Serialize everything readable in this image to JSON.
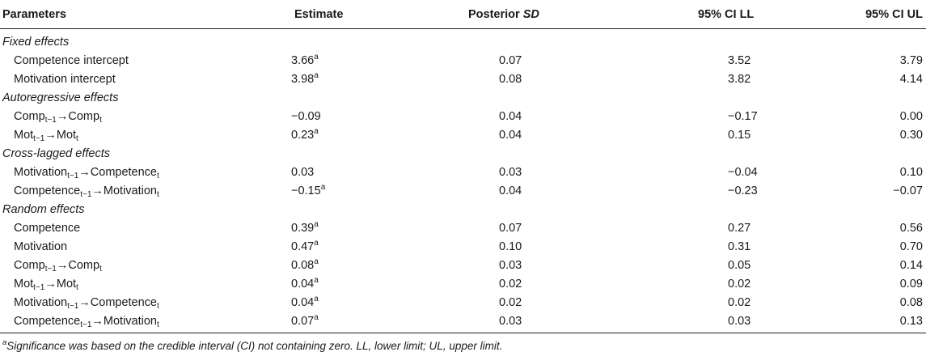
{
  "table": {
    "headers": {
      "parameters": "Parameters",
      "estimate": "Estimate",
      "posterior": "Posterior ",
      "posterior_sd": "SD",
      "ci_ll": "95% CI LL",
      "ci_ul": "95% CI UL"
    },
    "sections": [
      {
        "title": "Fixed effects",
        "rows": [
          {
            "label": "Competence intercept",
            "sub1": "",
            "mid": "",
            "sub2": "",
            "est": "3.66",
            "sig": "a",
            "sd": "0.07",
            "ll": "3.52",
            "ul": "3.79"
          },
          {
            "label": "Motivation intercept",
            "sub1": "",
            "mid": "",
            "sub2": "",
            "est": "3.98",
            "sig": "a",
            "sd": "0.08",
            "ll": "3.82",
            "ul": "4.14"
          }
        ]
      },
      {
        "title": "Autoregressive effects",
        "rows": [
          {
            "label": "Comp",
            "sub1": "t−1",
            "mid": "→Comp",
            "sub2": "t",
            "est": "−0.09",
            "sig": "",
            "sd": "0.04",
            "ll": "−0.17",
            "ul": "0.00"
          },
          {
            "label": "Mot",
            "sub1": "t−1",
            "mid": "→Mot",
            "sub2": "t",
            "est": "0.23",
            "sig": "a",
            "sd": "0.04",
            "ll": "0.15",
            "ul": "0.30"
          }
        ]
      },
      {
        "title": "Cross-lagged effects",
        "rows": [
          {
            "label": "Motivation",
            "sub1": "t−1",
            "mid": "→Competence",
            "sub2": "t",
            "est": "0.03",
            "sig": "",
            "sd": "0.03",
            "ll": "−0.04",
            "ul": "0.10"
          },
          {
            "label": "Competence",
            "sub1": "t−1",
            "mid": "→Motivation",
            "sub2": "t",
            "est": "−0.15",
            "sig": "a",
            "sd": "0.04",
            "ll": "−0.23",
            "ul": "−0.07"
          }
        ]
      },
      {
        "title": "Random effects",
        "rows": [
          {
            "label": "Competence",
            "sub1": "",
            "mid": "",
            "sub2": "",
            "est": "0.39",
            "sig": "a",
            "sd": "0.07",
            "ll": "0.27",
            "ul": "0.56"
          },
          {
            "label": "Motivation",
            "sub1": "",
            "mid": "",
            "sub2": "",
            "est": "0.47",
            "sig": "a",
            "sd": "0.10",
            "ll": "0.31",
            "ul": "0.70"
          },
          {
            "label": "Comp",
            "sub1": "t−1",
            "mid": "→Comp",
            "sub2": "t",
            "est": "0.08",
            "sig": "a",
            "sd": "0.03",
            "ll": "0.05",
            "ul": "0.14"
          },
          {
            "label": "Mot",
            "sub1": "t−1",
            "mid": "→Mot",
            "sub2": "t",
            "est": "0.04",
            "sig": "a",
            "sd": "0.02",
            "ll": "0.02",
            "ul": "0.09"
          },
          {
            "label": "Motivation",
            "sub1": "t−1",
            "mid": "→Competence",
            "sub2": "t",
            "est": "0.04",
            "sig": "a",
            "sd": "0.02",
            "ll": "0.02",
            "ul": "0.08"
          },
          {
            "label": "Competence",
            "sub1": "t−1",
            "mid": "→Motivation",
            "sub2": "t",
            "est": "0.07",
            "sig": "a",
            "sd": "0.03",
            "ll": "0.03",
            "ul": "0.13"
          }
        ]
      }
    ]
  },
  "footnote": {
    "marker": "a",
    "text": "Significance was based on the credible interval (CI) not containing zero. LL, lower limit; UL, upper limit."
  }
}
